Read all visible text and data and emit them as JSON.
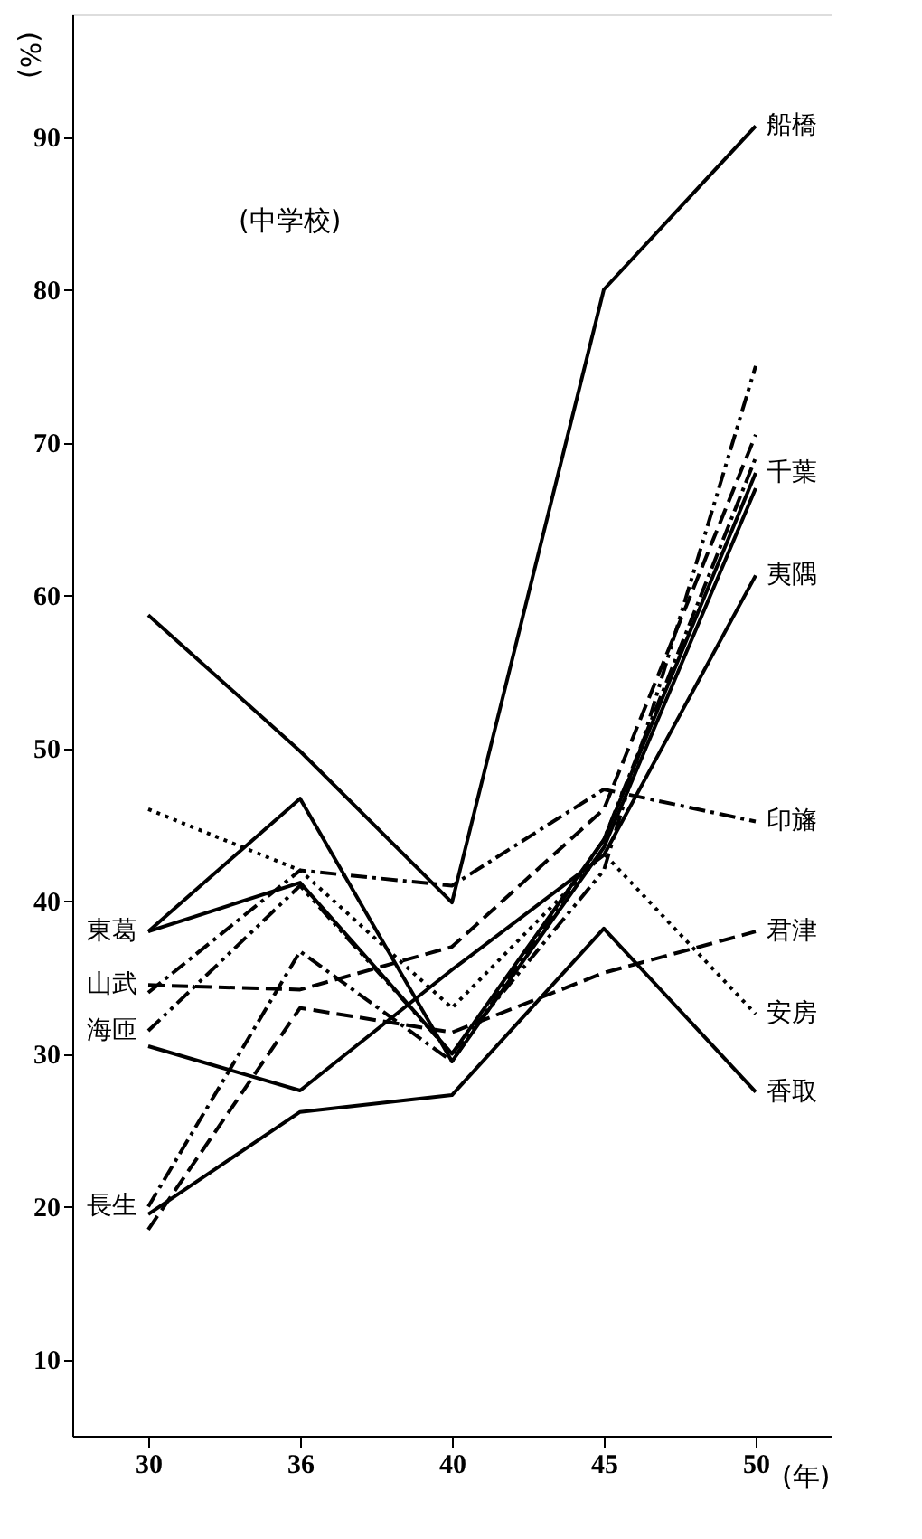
{
  "chart_data": {
    "type": "line",
    "ylabel": "(%)",
    "xlabel": "(年)",
    "annotations": [
      "(中学校)"
    ],
    "categories": [
      "30",
      "36",
      "40",
      "45",
      "50"
    ],
    "ylim": [
      5,
      98
    ],
    "yticks": [
      10,
      20,
      30,
      40,
      50,
      60,
      70,
      80,
      90
    ],
    "grid": false,
    "series": [
      {
        "name": "船橋",
        "color": "#000000",
        "line_style": "solid",
        "values": [
          58.7,
          49.8,
          39.9,
          80,
          90.7
        ]
      },
      {
        "name": "千葉",
        "color": "#000000",
        "line_style": "solid",
        "values": [
          38,
          41.2,
          30,
          44,
          68
        ]
      },
      {
        "name": "夷隅",
        "color": "#000000",
        "line_style": "solid",
        "values": [
          30.5,
          27.6,
          35.5,
          43,
          61.3
        ]
      },
      {
        "name": "印旛",
        "color": "#000000",
        "line_style": "dashdot",
        "values": [
          34,
          42,
          41,
          47.3,
          45.2
        ]
      },
      {
        "name": "君津",
        "color": "#000000",
        "line_style": "dashed",
        "values": [
          18.5,
          33,
          31.4,
          35.3,
          38
        ]
      },
      {
        "name": "安房",
        "color": "#000000",
        "line_style": "dotted",
        "values": [
          46,
          42,
          33,
          43.1,
          32.6
        ]
      },
      {
        "name": "香取",
        "color": "#000000",
        "line_style": "solid",
        "values": [
          19.5,
          26.2,
          27.3,
          38.2,
          27.5
        ]
      },
      {
        "name": "東葛",
        "color": "#000000",
        "line_style": "solid",
        "values": [
          38,
          46.7,
          29.5,
          43.5,
          67
        ]
      },
      {
        "name": "山武",
        "color": "#000000",
        "line_style": "dashed",
        "values": [
          34.5,
          34.2,
          37,
          46,
          70.5
        ]
      },
      {
        "name": "海匝",
        "color": "#000000",
        "line_style": "dashdotdot",
        "values": [
          31.5,
          41,
          30,
          42,
          75
        ]
      },
      {
        "name": "長生",
        "color": "#000000",
        "line_style": "dashdot",
        "values": [
          20,
          36.7,
          29.5,
          44,
          69
        ]
      }
    ]
  }
}
